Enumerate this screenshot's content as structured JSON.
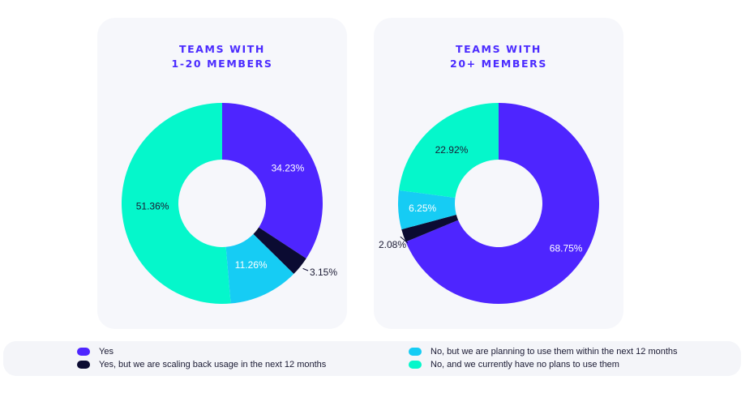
{
  "colors": {
    "yes": "#4e25ff",
    "scaling_back": "#0b0b32",
    "planning": "#16ccf4",
    "no_plans": "#05f7cb"
  },
  "legend": [
    {
      "label": "Yes",
      "color": "#4e25ff"
    },
    {
      "label": "Yes, but we are scaling back usage in the next 12 months",
      "color": "#0b0b32"
    },
    {
      "label": "No, but we are planning to use them within the next 12 months",
      "color": "#16ccf4"
    },
    {
      "label": "No, and we currently have no plans to use them",
      "color": "#05f7cb"
    }
  ],
  "chart_data": [
    {
      "type": "pie",
      "title": "TEAMS WITH 1-20 MEMBERS",
      "title_lines": [
        "TEAMS WITH",
        "1-20 MEMBERS"
      ],
      "donut": true,
      "start": "12 o'clock, clockwise",
      "categories": [
        "Yes",
        "Yes, but we are scaling back usage in the next 12 months",
        "No, but we are planning to use them within the next 12 months",
        "No, and we currently have no plans to use them"
      ],
      "values": [
        34.23,
        3.15,
        11.26,
        51.36
      ],
      "labels": [
        "34.23%",
        "3.15%",
        "11.26%",
        "51.36%"
      ]
    },
    {
      "type": "pie",
      "title": "TEAMS WITH 20+ MEMBERS",
      "title_lines": [
        "TEAMS WITH",
        "20+ MEMBERS"
      ],
      "donut": true,
      "start": "12 o'clock, clockwise",
      "categories": [
        "Yes",
        "Yes, but we are scaling back usage in the next 12 months",
        "No, but we are planning to use them within the next 12 months",
        "No, and we currently have no plans to use them"
      ],
      "values": [
        68.75,
        2.08,
        6.25,
        22.92
      ],
      "labels": [
        "68.75%",
        "2.08%",
        "6.25%",
        "22.92%"
      ]
    }
  ]
}
